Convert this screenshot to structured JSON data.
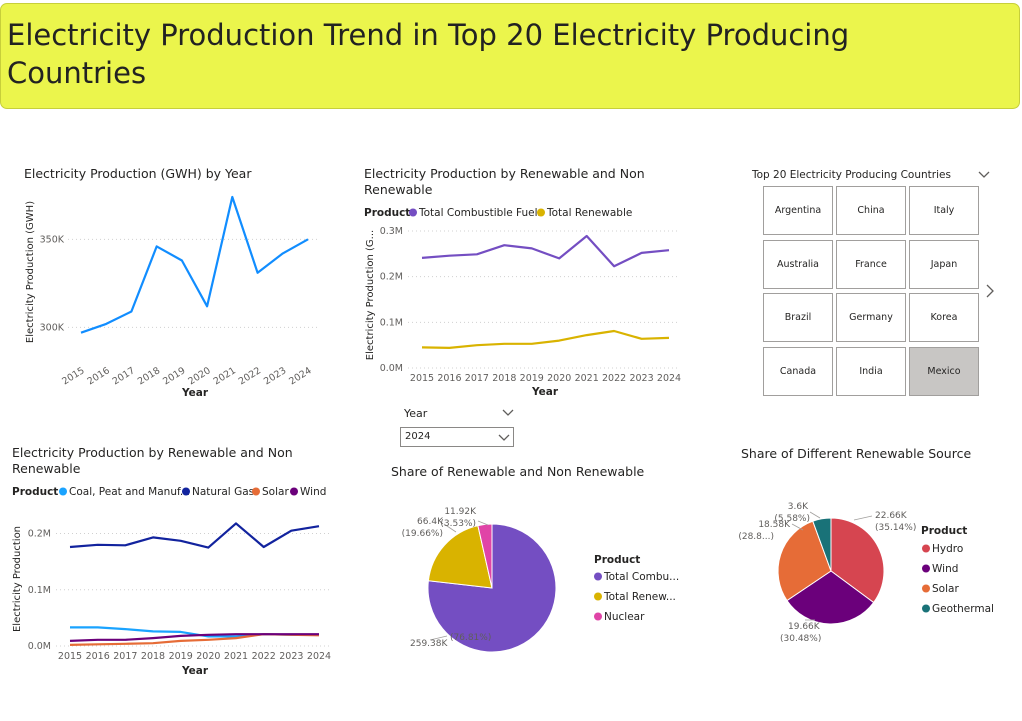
{
  "banner": {
    "title": "Electricity Production Trend in Top 20 Electricity Producing Countries"
  },
  "colors": {
    "banner": "#ebf54c",
    "blue": "#118dff",
    "purple": "#744ec2",
    "gold": "#d9b300",
    "pink": "#e044a7",
    "coal": "#1aa3ff",
    "gas": "#12239e",
    "solar": "#e66c37",
    "wind": "#6b007b",
    "hydro": "#d64550",
    "geothermal": "#197278",
    "slicer_selected": "#c8c6c4"
  },
  "slicer": {
    "title": "Top 20 Electricity Producing Countries",
    "items": [
      "Argentina",
      "China",
      "Italy",
      "Australia",
      "France",
      "Japan",
      "Brazil",
      "Germany",
      "Korea",
      "Canada",
      "India",
      "Mexico"
    ],
    "selected": "Mexico"
  },
  "year_filter": {
    "label": "Year",
    "value": "2024"
  },
  "icons": {
    "slicer_dropdown": "chevron-down-icon",
    "slicer_next": "chevron-right-icon",
    "year_dropdown": "chevron-down-icon"
  },
  "chart_data": [
    {
      "type": "line",
      "title": "Electricity Production (GWH) by Year",
      "xlabel": "Year",
      "ylabel": "Electricity Production (GWH)",
      "x": [
        "2015",
        "2016",
        "2017",
        "2018",
        "2019",
        "2020",
        "2021",
        "2022",
        "2023",
        "2024"
      ],
      "y_ticks": [
        "300K",
        "350K"
      ],
      "ylim": [
        290000,
        378000
      ],
      "series": [
        {
          "values": [
            297000,
            302000,
            309000,
            346000,
            338000,
            312000,
            374000,
            331000,
            342000,
            350000
          ]
        }
      ]
    },
    {
      "type": "line",
      "title": "Electricity Production by Renewable and Non Renewable",
      "xlabel": "Year",
      "ylabel": "Electricity Production (G...",
      "legend_title": "Product",
      "x": [
        "2015",
        "2016",
        "2017",
        "2018",
        "2019",
        "2020",
        "2021",
        "2022",
        "2023",
        "2024"
      ],
      "y_ticks": [
        "0.0M",
        "0.1M",
        "0.2M",
        "0.3M"
      ],
      "ylim": [
        0,
        300000
      ],
      "series": [
        {
          "name": "Total Combustible Fuels",
          "values": [
            241000,
            246000,
            249000,
            269000,
            262000,
            240000,
            289000,
            223000,
            252000,
            258000
          ]
        },
        {
          "name": "Total Renewable",
          "values": [
            45000,
            44000,
            50000,
            53000,
            53000,
            60000,
            72000,
            81000,
            64000,
            66000
          ]
        }
      ]
    },
    {
      "type": "line",
      "title": "Electricity Production by Renewable and Non Renewable",
      "xlabel": "Year",
      "ylabel": "Electricity Production",
      "legend_title": "Product",
      "x": [
        "2015",
        "2016",
        "2017",
        "2018",
        "2019",
        "2020",
        "2021",
        "2022",
        "2023",
        "2024"
      ],
      "y_ticks": [
        "0.0M",
        "0.1M",
        "0.2M"
      ],
      "ylim": [
        0,
        240000
      ],
      "series": [
        {
          "name": "Coal, Peat and Manuf...",
          "values": [
            33000,
            33000,
            30000,
            26000,
            25000,
            17000,
            17000,
            21000,
            20000,
            20000
          ]
        },
        {
          "name": "Natural Gas",
          "values": [
            176000,
            180000,
            179000,
            193000,
            187000,
            175000,
            218000,
            176000,
            205000,
            213000
          ]
        },
        {
          "name": "Solar",
          "values": [
            2000,
            3000,
            4000,
            5000,
            9000,
            11000,
            14000,
            21000,
            20000,
            19000
          ]
        },
        {
          "name": "Wind",
          "values": [
            9000,
            11000,
            11000,
            14000,
            18000,
            20000,
            21000,
            21000,
            21000,
            21000
          ]
        }
      ]
    },
    {
      "type": "pie",
      "title": "Share of Renewable and Non Renewable",
      "legend_title": "Product",
      "slices": [
        {
          "name": "Total Combu...",
          "value": 259380,
          "label": "259.38K",
          "pct": "(76.81%)"
        },
        {
          "name": "Total Renew...",
          "value": 66400,
          "label": "66.4K",
          "pct": "(19.66%)"
        },
        {
          "name": "Nuclear",
          "value": 11920,
          "label": "11.92K",
          "pct": "(3.53%)"
        }
      ]
    },
    {
      "type": "pie",
      "title": "Share of Different Renewable Source",
      "legend_title": "Product",
      "slices": [
        {
          "name": "Hydro",
          "value": 22660,
          "label": "22.66K",
          "pct": "(35.14%)"
        },
        {
          "name": "Wind",
          "value": 19660,
          "label": "19.66K",
          "pct": "(30.48%)"
        },
        {
          "name": "Solar",
          "value": 18580,
          "label": "18.58K",
          "pct": "(28.8...)"
        },
        {
          "name": "Geothermal",
          "value": 3600,
          "label": "3.6K",
          "pct": "(5.58%)"
        }
      ]
    }
  ]
}
